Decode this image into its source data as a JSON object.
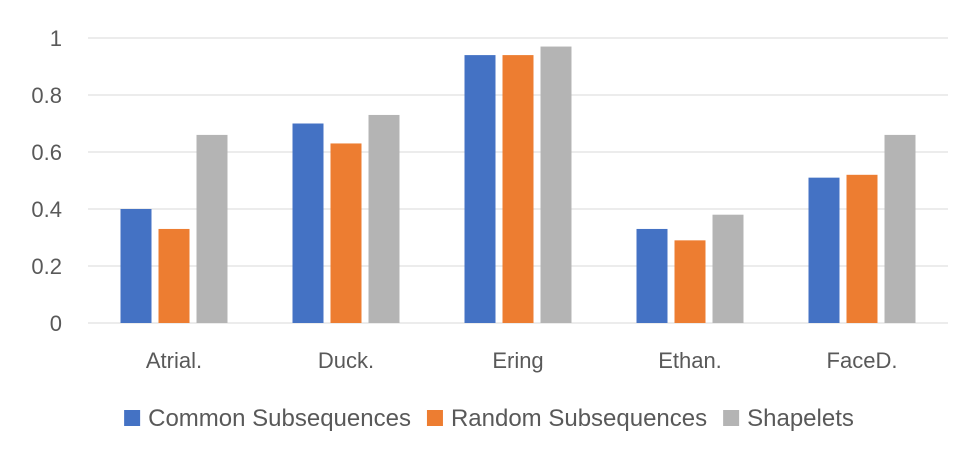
{
  "chart_data": {
    "type": "bar",
    "categories": [
      "Atrial.",
      "Duck.",
      "Ering",
      "Ethan.",
      "FaceD."
    ],
    "series": [
      {
        "name": "Common Subsequences",
        "color": "#4472c4",
        "values": [
          0.4,
          0.7,
          0.94,
          0.33,
          0.51
        ]
      },
      {
        "name": "Random Subsequences",
        "color": "#ed7d31",
        "values": [
          0.33,
          0.63,
          0.94,
          0.29,
          0.52
        ]
      },
      {
        "name": "Shapelets",
        "color": "#b4b4b4",
        "values": [
          0.66,
          0.73,
          0.97,
          0.38,
          0.66
        ]
      }
    ],
    "yticks": [
      "0",
      "0.2",
      "0.4",
      "0.6",
      "0.8",
      "1"
    ],
    "ylim": [
      0,
      1
    ],
    "title": "",
    "xlabel": "",
    "ylabel": "",
    "grid": true,
    "legend_position": "bottom"
  }
}
